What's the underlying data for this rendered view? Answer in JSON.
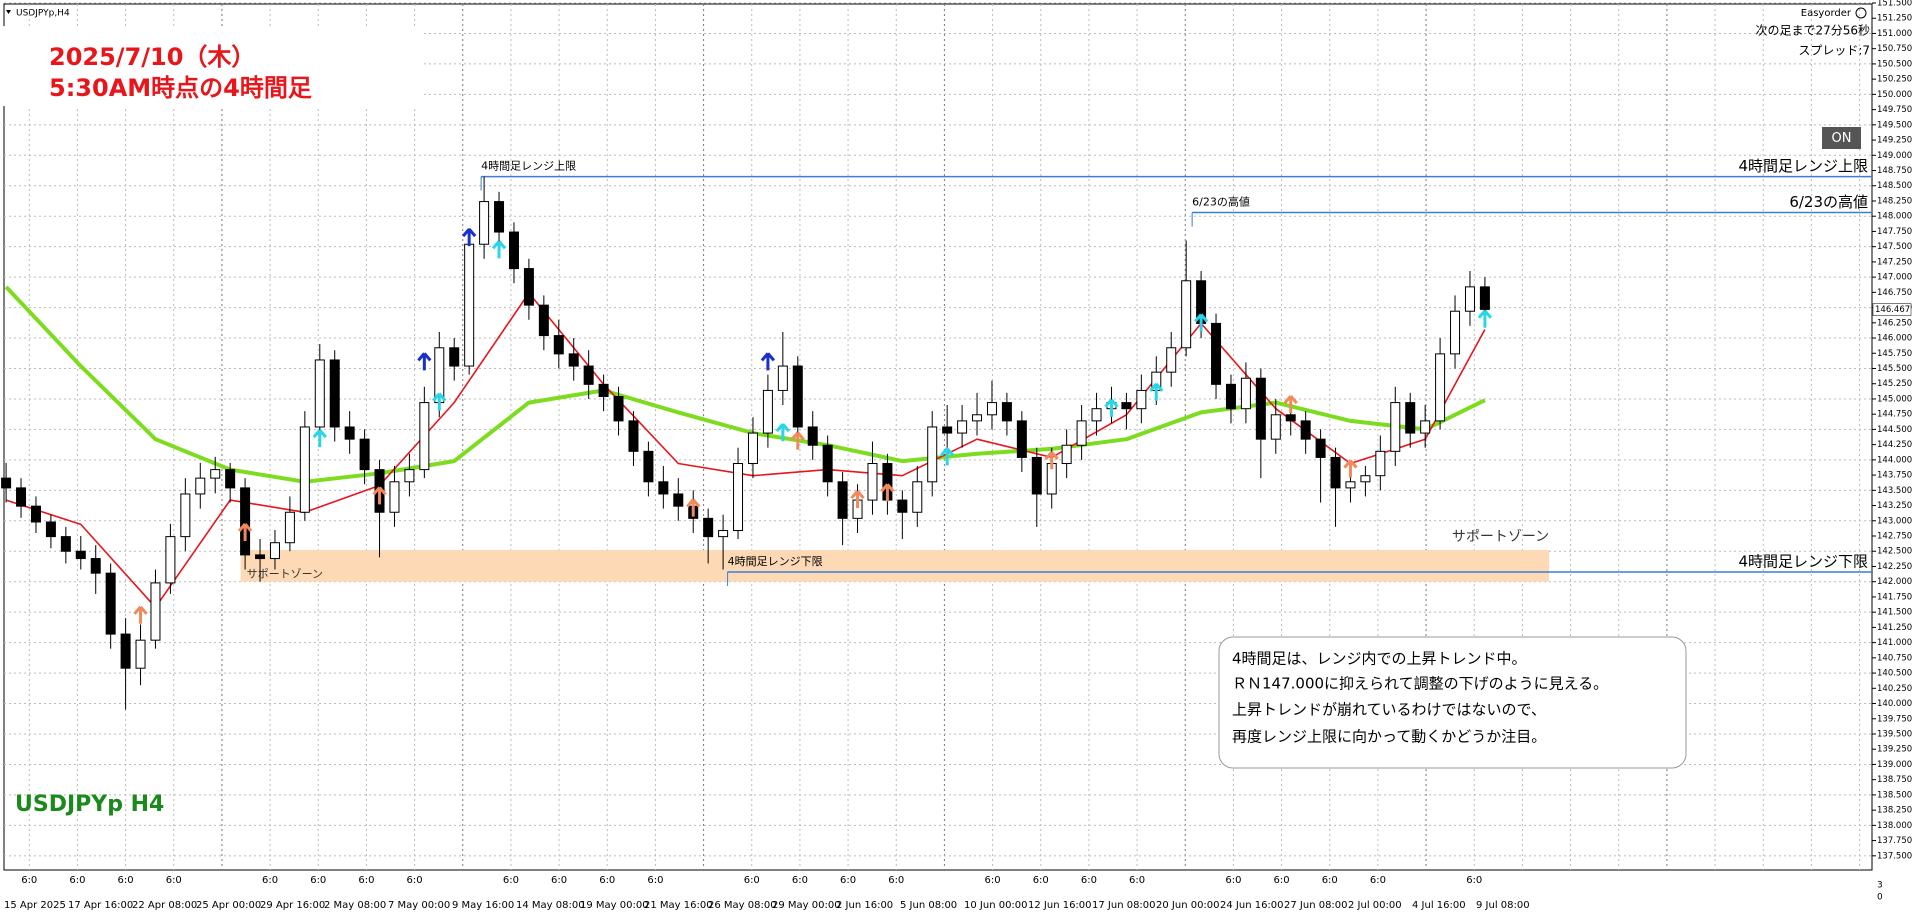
{
  "chart_data": {
    "type": "candlestick",
    "symbol": "USDJPYp,H4",
    "title": "2025/7/10（木）",
    "subtitle": "5:30AM時点の4時間足",
    "watermark": "USDJPYp H4",
    "panel": {
      "name": "Easyorder",
      "countdown": "次の足まで27分56秒",
      "spread": "スプレッド:7",
      "button": "ON"
    },
    "annotation": [
      "4時間足は、レンジ内での上昇トレンド中。",
      "ＲＮ147.000に抑えられて調整の下げのように見える。",
      "上昇トレンドが崩れているわけではないので、",
      "再度レンジ上限に向かって動くかどうか注目。"
    ],
    "current_price": 146.467,
    "ylim": [
      137.3,
      151.5
    ],
    "yticks": [
      {
        "value": 137.5,
        "label": "137.500"
      },
      {
        "value": 137.75,
        "label": "137.750"
      },
      {
        "value": 138,
        "label": "138.000"
      },
      {
        "value": 138.25,
        "label": "138.250"
      },
      {
        "value": 138.5,
        "label": "138.500"
      },
      {
        "value": 138.75,
        "label": "138.750"
      },
      {
        "value": 139,
        "label": "139.000"
      },
      {
        "value": 139.25,
        "label": "139.250"
      },
      {
        "value": 139.5,
        "label": "139.500"
      },
      {
        "value": 139.75,
        "label": "139.750"
      },
      {
        "value": 140,
        "label": "140.000"
      },
      {
        "value": 140.25,
        "label": "140.250"
      },
      {
        "value": 140.5,
        "label": "140.500"
      },
      {
        "value": 140.75,
        "label": "140.750"
      },
      {
        "value": 141,
        "label": "141.000"
      },
      {
        "value": 141.25,
        "label": "141.250"
      },
      {
        "value": 141.5,
        "label": "141.500"
      },
      {
        "value": 141.75,
        "label": "141.750"
      },
      {
        "value": 142,
        "label": "142.000"
      },
      {
        "value": 142.25,
        "label": "142.250"
      },
      {
        "value": 142.5,
        "label": "142.500"
      },
      {
        "value": 142.75,
        "label": "142.750"
      },
      {
        "value": 143,
        "label": "143.000"
      },
      {
        "value": 143.25,
        "label": "143.250"
      },
      {
        "value": 143.5,
        "label": "143.500"
      },
      {
        "value": 143.75,
        "label": "143.750"
      },
      {
        "value": 144,
        "label": "144.000"
      },
      {
        "value": 144.25,
        "label": "144.250"
      },
      {
        "value": 144.5,
        "label": "144.500"
      },
      {
        "value": 144.75,
        "label": "144.750"
      },
      {
        "value": 145,
        "label": "145.000"
      },
      {
        "value": 145.25,
        "label": "145.250"
      },
      {
        "value": 145.5,
        "label": "145.500"
      },
      {
        "value": 145.75,
        "label": "145.750"
      },
      {
        "value": 146,
        "label": "146.000"
      },
      {
        "value": 146.25,
        "label": "146.250"
      },
      {
        "value": 146.5,
        "label": "146.500"
      },
      {
        "value": 146.75,
        "label": "146.750"
      },
      {
        "value": 147,
        "label": "147.000"
      },
      {
        "value": 147.25,
        "label": "147.250"
      },
      {
        "value": 147.5,
        "label": "147.500"
      },
      {
        "value": 147.75,
        "label": "147.750"
      },
      {
        "value": 148,
        "label": "148.000"
      },
      {
        "value": 148.25,
        "label": "148.250"
      },
      {
        "value": 148.5,
        "label": "148.500"
      },
      {
        "value": 148.75,
        "label": "148.750"
      },
      {
        "value": 149,
        "label": "149.000"
      },
      {
        "value": 149.25,
        "label": "149.250"
      },
      {
        "value": 149.5,
        "label": "149.500"
      },
      {
        "value": 149.75,
        "label": "149.750"
      },
      {
        "value": 150,
        "label": "150.000"
      },
      {
        "value": 150.25,
        "label": "150.250"
      },
      {
        "value": 150.5,
        "label": "150.500"
      },
      {
        "value": 150.75,
        "label": "150.750"
      },
      {
        "value": 151,
        "label": "151.000"
      },
      {
        "value": 151.25,
        "label": "151.250"
      },
      {
        "value": 151.5,
        "label": "151.500"
      }
    ],
    "x_labels": [
      "15 Apr 2025",
      "17 Apr 16:00",
      "22 Apr 08:00",
      "25 Apr 00:00",
      "29 Apr 16:00",
      "2 May 08:00",
      "7 May 00:00",
      "9 May 16:00",
      "14 May 08:00",
      "19 May 00:00",
      "21 May 16:00",
      "26 May 08:00",
      "29 May 00:00",
      "2 Jun 16:00",
      "5 Jun 08:00",
      "10 Jun 00:00",
      "12 Jun 16:00",
      "17 Jun 08:00",
      "20 Jun 00:00",
      "24 Jun 16:00",
      "27 Jun 08:00",
      "2 Jul 00:00",
      "4 Jul 16:00",
      "9 Jul 08:00"
    ],
    "separator_labels": [
      "6:0",
      "6:0",
      "6:0",
      "6:0",
      "6:0",
      "6:0",
      "6:0",
      "6:0",
      "6:0",
      "6:0",
      "6:0",
      "6:0",
      "6:0",
      "6:0",
      "6:0",
      "6:0",
      "6:0",
      "6:0",
      "6:0",
      "6:0",
      "6:0",
      "6:0",
      "6:0",
      "6:0",
      "6:0"
    ],
    "subwindow_labels": [
      "3",
      "0"
    ],
    "candles": [
      [
        143.7,
        143.95,
        143.3,
        143.54
      ],
      [
        143.54,
        143.7,
        143.05,
        143.24
      ],
      [
        143.24,
        143.4,
        142.8,
        142.98
      ],
      [
        142.98,
        143.1,
        142.55,
        142.74
      ],
      [
        142.74,
        142.9,
        142.3,
        142.5
      ],
      [
        142.5,
        142.75,
        142.2,
        142.38
      ],
      [
        142.38,
        142.6,
        141.8,
        142.14
      ],
      [
        142.14,
        142.3,
        140.9,
        141.14
      ],
      [
        141.14,
        141.4,
        139.9,
        140.58
      ],
      [
        140.58,
        141.3,
        140.3,
        141.04
      ],
      [
        141.04,
        142.2,
        140.9,
        141.98
      ],
      [
        141.98,
        142.95,
        141.8,
        142.74
      ],
      [
        142.74,
        143.7,
        142.5,
        143.44
      ],
      [
        143.44,
        143.95,
        143.2,
        143.7
      ],
      [
        143.7,
        144.05,
        143.45,
        143.84
      ],
      [
        143.84,
        143.95,
        143.3,
        143.54
      ],
      [
        143.54,
        143.7,
        142.2,
        142.44
      ],
      [
        142.44,
        142.7,
        142.0,
        142.38
      ],
      [
        142.38,
        142.85,
        142.2,
        142.64
      ],
      [
        142.64,
        143.4,
        142.5,
        143.14
      ],
      [
        143.14,
        144.8,
        143.0,
        144.54
      ],
      [
        144.54,
        145.9,
        144.4,
        145.64
      ],
      [
        145.64,
        145.8,
        144.3,
        144.54
      ],
      [
        144.54,
        144.8,
        144.1,
        144.34
      ],
      [
        144.34,
        144.5,
        143.6,
        143.84
      ],
      [
        143.84,
        144.0,
        142.4,
        143.14
      ],
      [
        143.14,
        143.9,
        142.9,
        143.64
      ],
      [
        143.64,
        144.1,
        143.4,
        143.84
      ],
      [
        143.84,
        145.2,
        143.7,
        144.94
      ],
      [
        144.94,
        146.1,
        144.7,
        145.84
      ],
      [
        145.84,
        146.0,
        145.3,
        145.54
      ],
      [
        145.54,
        147.8,
        145.4,
        147.54
      ],
      [
        147.54,
        148.65,
        147.3,
        148.24
      ],
      [
        148.24,
        148.4,
        147.5,
        147.74
      ],
      [
        147.74,
        147.9,
        146.9,
        147.14
      ],
      [
        147.14,
        147.3,
        146.3,
        146.54
      ],
      [
        146.54,
        146.7,
        145.8,
        146.04
      ],
      [
        146.04,
        146.3,
        145.5,
        145.74
      ],
      [
        145.74,
        146.0,
        145.3,
        145.54
      ],
      [
        145.54,
        145.8,
        145.0,
        145.24
      ],
      [
        145.24,
        145.4,
        144.8,
        145.04
      ],
      [
        145.04,
        145.2,
        144.4,
        144.64
      ],
      [
        144.64,
        144.8,
        143.9,
        144.14
      ],
      [
        144.14,
        144.3,
        143.4,
        143.64
      ],
      [
        143.64,
        143.9,
        143.2,
        143.44
      ],
      [
        143.44,
        143.7,
        143.0,
        143.24
      ],
      [
        143.24,
        143.5,
        142.8,
        143.04
      ],
      [
        143.04,
        143.2,
        142.3,
        142.74
      ],
      [
        142.74,
        143.1,
        142.2,
        142.84
      ],
      [
        142.84,
        144.2,
        142.7,
        143.94
      ],
      [
        143.94,
        144.7,
        143.7,
        144.44
      ],
      [
        144.44,
        145.4,
        144.2,
        145.14
      ],
      [
        145.14,
        146.1,
        144.9,
        145.54
      ],
      [
        145.54,
        145.7,
        144.3,
        144.54
      ],
      [
        144.54,
        144.8,
        144.0,
        144.24
      ],
      [
        144.24,
        144.4,
        143.4,
        143.64
      ],
      [
        143.64,
        143.8,
        142.6,
        143.04
      ],
      [
        143.04,
        143.6,
        142.8,
        143.34
      ],
      [
        143.34,
        144.3,
        143.1,
        143.94
      ],
      [
        143.94,
        144.1,
        143.1,
        143.34
      ],
      [
        143.34,
        143.5,
        142.7,
        143.14
      ],
      [
        143.14,
        143.9,
        142.9,
        143.64
      ],
      [
        143.64,
        144.8,
        143.4,
        144.54
      ],
      [
        144.54,
        144.9,
        144.2,
        144.44
      ],
      [
        144.44,
        144.9,
        144.2,
        144.64
      ],
      [
        144.64,
        145.1,
        144.4,
        144.74
      ],
      [
        144.74,
        145.3,
        144.5,
        144.94
      ],
      [
        144.94,
        145.1,
        144.4,
        144.64
      ],
      [
        144.64,
        144.8,
        143.8,
        144.04
      ],
      [
        144.04,
        144.2,
        142.9,
        143.44
      ],
      [
        143.44,
        144.2,
        143.2,
        143.94
      ],
      [
        143.94,
        144.5,
        143.7,
        144.24
      ],
      [
        144.24,
        144.9,
        144.0,
        144.64
      ],
      [
        144.64,
        145.1,
        144.4,
        144.84
      ],
      [
        144.84,
        145.2,
        144.6,
        144.94
      ],
      [
        144.94,
        145.1,
        144.5,
        144.84
      ],
      [
        144.84,
        145.4,
        144.6,
        145.14
      ],
      [
        145.14,
        145.7,
        144.9,
        145.44
      ],
      [
        145.44,
        146.1,
        145.2,
        145.84
      ],
      [
        145.84,
        147.6,
        145.7,
        146.94
      ],
      [
        146.94,
        147.1,
        146.0,
        146.24
      ],
      [
        146.24,
        146.4,
        145.0,
        145.24
      ],
      [
        145.24,
        145.4,
        144.6,
        144.84
      ],
      [
        144.84,
        145.6,
        144.6,
        145.34
      ],
      [
        145.34,
        145.5,
        143.7,
        144.34
      ],
      [
        144.34,
        145.0,
        144.1,
        144.74
      ],
      [
        144.74,
        145.0,
        144.4,
        144.64
      ],
      [
        144.64,
        144.8,
        144.1,
        144.34
      ],
      [
        144.34,
        144.5,
        143.3,
        144.04
      ],
      [
        144.04,
        144.2,
        142.9,
        143.54
      ],
      [
        143.54,
        143.9,
        143.3,
        143.64
      ],
      [
        143.64,
        143.9,
        143.4,
        143.74
      ],
      [
        143.74,
        144.4,
        143.5,
        144.14
      ],
      [
        144.14,
        145.2,
        143.9,
        144.94
      ],
      [
        144.94,
        145.1,
        144.2,
        144.44
      ],
      [
        144.44,
        144.9,
        144.2,
        144.64
      ],
      [
        144.64,
        146.0,
        144.5,
        145.74
      ],
      [
        145.74,
        146.7,
        145.5,
        146.44
      ],
      [
        146.44,
        147.1,
        146.2,
        146.84
      ],
      [
        146.84,
        147.0,
        146.2,
        146.47
      ]
    ],
    "series": [
      {
        "color": "#7ddc1f",
        "width": 4,
        "x": [
          0,
          5,
          10,
          15,
          20,
          25,
          30,
          35,
          40,
          45,
          50,
          55,
          60,
          65,
          70,
          75,
          80,
          85,
          90,
          95,
          99
        ],
        "values": [
          146.84,
          145.54,
          144.34,
          143.84,
          143.64,
          143.78,
          143.98,
          144.94,
          145.14,
          144.78,
          144.44,
          144.24,
          143.98,
          144.1,
          144.18,
          144.34,
          144.78,
          144.94,
          144.64,
          144.5,
          144.98
        ]
      },
      {
        "color": "#e8151b",
        "width": 1.6,
        "x": [
          0,
          5,
          10,
          15,
          20,
          25,
          30,
          35,
          40,
          45,
          50,
          55,
          60,
          65,
          70,
          75,
          80,
          85,
          90,
          95,
          99
        ],
        "values": [
          143.34,
          142.94,
          141.58,
          143.34,
          143.14,
          143.58,
          144.94,
          146.74,
          145.24,
          143.94,
          143.74,
          143.84,
          143.74,
          144.34,
          144.04,
          144.74,
          146.24,
          144.84,
          143.94,
          144.34,
          146.14
        ]
      }
    ],
    "signals": [
      {
        "color": "#1a2fd0",
        "points": [
          [
            31,
            147.64
          ],
          [
            28,
            145.6
          ],
          [
            51,
            145.6
          ]
        ]
      },
      {
        "color": "#27d6e8",
        "points": [
          [
            21,
            144.34
          ],
          [
            29,
            144.94
          ],
          [
            33,
            147.44
          ],
          [
            52,
            144.44
          ],
          [
            63,
            144.04
          ],
          [
            74,
            144.84
          ],
          [
            77,
            145.1
          ],
          [
            80,
            146.24
          ],
          [
            99,
            146.3
          ]
        ]
      },
      {
        "color": "#f08a5d",
        "points": [
          [
            9,
            141.44
          ],
          [
            16,
            142.8
          ],
          [
            25,
            143.4
          ],
          [
            46,
            143.2
          ],
          [
            53,
            144.3
          ],
          [
            57,
            143.34
          ],
          [
            59,
            143.45
          ],
          [
            70,
            143.98
          ],
          [
            86,
            144.9
          ],
          [
            90,
            143.84
          ]
        ]
      }
    ],
    "levels": [
      {
        "label": "4時間足レンジ上限",
        "value": 148.65,
        "start": 31.8,
        "color": "#3b7dd8"
      },
      {
        "label": "6/23の高値",
        "value": 148.06,
        "start": 79.4,
        "color": "#3b7dd8"
      },
      {
        "label": "4時間足レンジ下限",
        "value": 142.16,
        "start": 48.3,
        "color": "#3b7dd8"
      }
    ],
    "zone": {
      "label": "サポートゾーン",
      "low": 142.0,
      "high": 142.52,
      "start": 15.7,
      "end": 103.3,
      "color": "#fdd9b5"
    }
  }
}
